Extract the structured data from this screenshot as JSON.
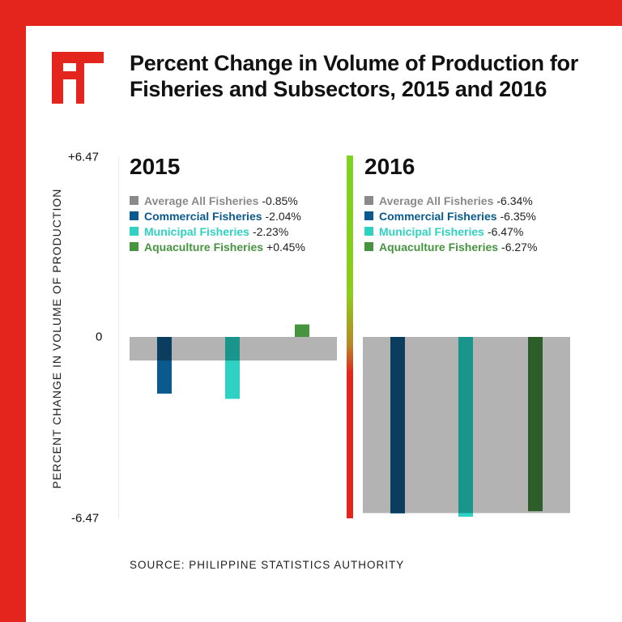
{
  "title": "Percent Change in Volume of Production for Fisheries and Subsectors, 2015 and 2016",
  "source": "SOURCE: PHILIPPINE STATISTICS AUTHORITY",
  "brand_color": "#e3251d",
  "chart_data": {
    "type": "bar",
    "ylabel": "PERCENT CHANGE IN VOLUME OF PRODUCTION",
    "ylim": [
      -6.47,
      6.47
    ],
    "y_ticks": [
      "+6.47",
      "0",
      "-6.47"
    ],
    "series_names": [
      "Average All Fisheries",
      "Commercial Fisheries",
      "Municipal Fisheries",
      "Aquaculture Fisheries"
    ],
    "colors": [
      "#8a8a8a",
      "#0a5a8e",
      "#2ed1c2",
      "#46943f"
    ],
    "panels": [
      {
        "year": "2015",
        "labels": [
          "-0.85%",
          "-2.04%",
          "-2.23%",
          "+0.45%"
        ],
        "values": [
          -0.85,
          -2.04,
          -2.23,
          0.45
        ]
      },
      {
        "year": "2016",
        "labels": [
          "-6.34%",
          "-6.35%",
          "-6.47%",
          "-6.27%"
        ],
        "values": [
          -6.34,
          -6.35,
          -6.47,
          -6.27
        ]
      }
    ]
  }
}
